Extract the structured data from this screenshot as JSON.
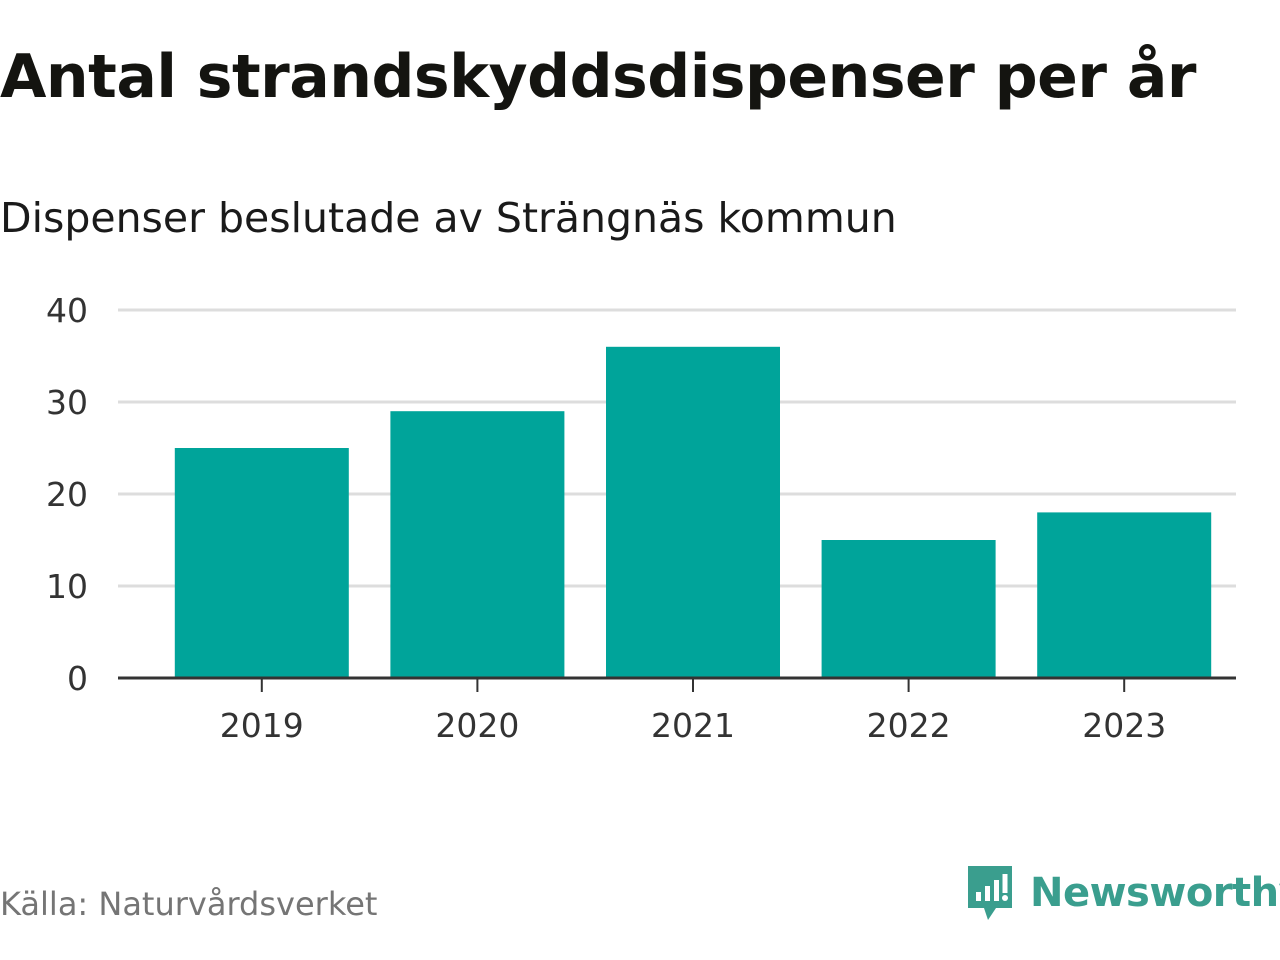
{
  "title": "Antal strandskyddsdispenser per år",
  "subtitle": "Dispenser beslutade av Strängnäs kommun",
  "source": "Källa: Naturvårdsverket",
  "brand": {
    "name": "Newsworthy",
    "icon": "newsworthy-logo-icon",
    "color": "#3a9e8e"
  },
  "colors": {
    "bar": "#00a49a",
    "grid": "#dddddd",
    "axis": "#333333"
  },
  "chart_data": {
    "type": "bar",
    "title": "Antal strandskyddsdispenser per år",
    "subtitle": "Dispenser beslutade av Strängnäs kommun",
    "xlabel": "",
    "ylabel": "",
    "categories": [
      "2019",
      "2020",
      "2021",
      "2022",
      "2023"
    ],
    "values": [
      25,
      29,
      36,
      15,
      18
    ],
    "ylim": [
      0,
      40
    ],
    "yticks": [
      0,
      10,
      20,
      30,
      40
    ],
    "grid": true,
    "legend": "none"
  }
}
